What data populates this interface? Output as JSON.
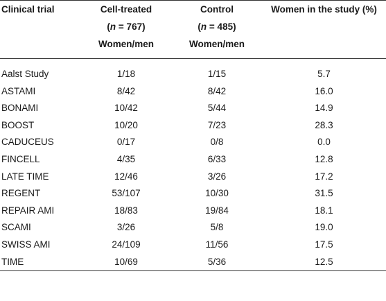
{
  "header": {
    "col1": "Clinical trial",
    "col2_line1": "Cell-treated",
    "col2_n_prefix": "(",
    "col2_n_var": "n",
    "col2_n_value": " = 767)",
    "col2_line3": "Women/men",
    "col3_line1": "Control",
    "col3_n_prefix": "(",
    "col3_n_var": "n",
    "col3_n_value": " = 485)",
    "col3_line3": "Women/men",
    "col4": "Women in the study (%)"
  },
  "rows": [
    {
      "trial": "Aalst Study",
      "treated": "1/18",
      "control": "1/15",
      "women_pct": "5.7"
    },
    {
      "trial": "ASTAMI",
      "treated": "8/42",
      "control": "8/42",
      "women_pct": "16.0"
    },
    {
      "trial": "BONAMI",
      "treated": "10/42",
      "control": "5/44",
      "women_pct": "14.9"
    },
    {
      "trial": "BOOST",
      "treated": "10/20",
      "control": "7/23",
      "women_pct": "28.3"
    },
    {
      "trial": "CADUCEUS",
      "treated": "0/17",
      "control": "0/8",
      "women_pct": "0.0"
    },
    {
      "trial": "FINCELL",
      "treated": "4/35",
      "control": "6/33",
      "women_pct": "12.8"
    },
    {
      "trial": "LATE TIME",
      "treated": "12/46",
      "control": "3/26",
      "women_pct": "17.2"
    },
    {
      "trial": "REGENT",
      "treated": "53/107",
      "control": "10/30",
      "women_pct": "31.5"
    },
    {
      "trial": "REPAIR AMI",
      "treated": "18/83",
      "control": "19/84",
      "women_pct": "18.1"
    },
    {
      "trial": "SCAMI",
      "treated": "3/26",
      "control": "5/8",
      "women_pct": "19.0"
    },
    {
      "trial": "SWISS AMI",
      "treated": "24/109",
      "control": "11/56",
      "women_pct": "17.5"
    },
    {
      "trial": "TIME",
      "treated": "10/69",
      "control": "5/36",
      "women_pct": "12.5"
    }
  ]
}
